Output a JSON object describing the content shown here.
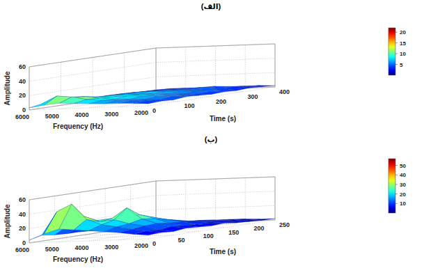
{
  "chart_data": [
    {
      "type": "surface",
      "title": "(الف)",
      "x_label": "Time (s)",
      "y_label": "Frequency (Hz)",
      "z_label": "Amplitude",
      "x": [
        0,
        40,
        80,
        120,
        160,
        200,
        240,
        280,
        320,
        360,
        400
      ],
      "y": [
        2000,
        2500,
        3000,
        3500,
        4000,
        4500,
        5000,
        5500,
        6000
      ],
      "z": [
        [
          3,
          4,
          3,
          5,
          4,
          3,
          4,
          3,
          4,
          3,
          2
        ],
        [
          4,
          5,
          4,
          6,
          5,
          4,
          5,
          4,
          3,
          4,
          3
        ],
        [
          5,
          6,
          5,
          7,
          6,
          5,
          6,
          5,
          4,
          4,
          3
        ],
        [
          5,
          7,
          6,
          8,
          7,
          6,
          6,
          5,
          5,
          4,
          3
        ],
        [
          6,
          8,
          7,
          9,
          8,
          7,
          7,
          6,
          5,
          5,
          4
        ],
        [
          7,
          10,
          9,
          8,
          9,
          7,
          8,
          6,
          5,
          4,
          3
        ],
        [
          8,
          14,
          12,
          9,
          8,
          7,
          7,
          6,
          5,
          4,
          3
        ],
        [
          6,
          16,
          11,
          7,
          6,
          5,
          6,
          5,
          4,
          3,
          3
        ],
        [
          3,
          6,
          5,
          4,
          4,
          3,
          4,
          3,
          3,
          2,
          2
        ]
      ],
      "xlim": [
        0,
        400
      ],
      "xticks": [
        0,
        100,
        200,
        300,
        400
      ],
      "ylim": [
        2000,
        6000
      ],
      "yticks": [
        2000,
        3000,
        4000,
        5000,
        6000
      ],
      "zlim": [
        0,
        60
      ],
      "zticks": [
        0,
        20,
        40,
        60
      ],
      "colorbar_lim": [
        0,
        22
      ],
      "colorbar_ticks": [
        5,
        10,
        15,
        20
      ],
      "grid": true
    },
    {
      "type": "surface",
      "title": "(ب)",
      "x_label": "Time (s)",
      "y_label": "Frequency (Hz)",
      "z_label": "Amplitude",
      "x": [
        0,
        25,
        50,
        75,
        100,
        125,
        150,
        175,
        200,
        225,
        250
      ],
      "y": [
        2000,
        2500,
        3000,
        3500,
        4000,
        4500,
        5000,
        5500,
        6000
      ],
      "z": [
        [
          5,
          6,
          5,
          7,
          6,
          5,
          6,
          4,
          3,
          2,
          2
        ],
        [
          7,
          9,
          8,
          10,
          9,
          8,
          7,
          5,
          4,
          3,
          2
        ],
        [
          10,
          12,
          14,
          15,
          13,
          12,
          10,
          7,
          5,
          4,
          3
        ],
        [
          12,
          16,
          18,
          22,
          20,
          16,
          12,
          8,
          6,
          4,
          3
        ],
        [
          14,
          20,
          24,
          38,
          26,
          20,
          14,
          9,
          6,
          5,
          3
        ],
        [
          16,
          28,
          22,
          24,
          22,
          18,
          13,
          8,
          6,
          4,
          3
        ],
        [
          18,
          50,
          30,
          22,
          20,
          16,
          12,
          8,
          5,
          4,
          3
        ],
        [
          12,
          40,
          20,
          16,
          14,
          12,
          9,
          6,
          4,
          3,
          2
        ],
        [
          4,
          8,
          6,
          5,
          5,
          4,
          4,
          3,
          2,
          2,
          2
        ]
      ],
      "xlim": [
        0,
        250
      ],
      "xticks": [
        0,
        50,
        100,
        150,
        200,
        250
      ],
      "ylim": [
        2000,
        6000
      ],
      "yticks": [
        2000,
        3000,
        4000,
        5000,
        6000
      ],
      "zlim": [
        0,
        60
      ],
      "zticks": [
        0,
        20,
        40,
        60
      ],
      "colorbar_lim": [
        0,
        57
      ],
      "colorbar_ticks": [
        10,
        20,
        30,
        40,
        50
      ],
      "grid": true
    }
  ]
}
